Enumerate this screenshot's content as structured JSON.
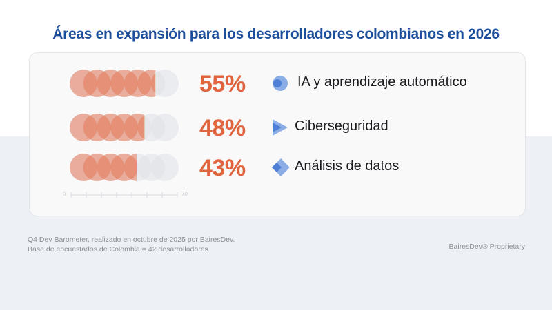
{
  "title": "Áreas en expansión para los desarrolladores colombianos en 2026",
  "chart_data": {
    "type": "bar",
    "title": "Áreas en expansión para los desarrolladores colombianos en 2026",
    "categories": [
      "IA y aprendizaje automático",
      "Ciberseguridad",
      "Análisis de datos"
    ],
    "values": [
      55,
      48,
      43
    ],
    "value_labels": [
      "55%",
      "48%",
      "43%"
    ],
    "xlim": [
      0,
      70
    ],
    "axis_tick_step": 10,
    "axis_labels": {
      "min": "0",
      "max": "70"
    },
    "legend_icons": [
      "circle-icon",
      "triangle-icon",
      "diamond-icon"
    ],
    "colors": {
      "fill": "#e57a5a",
      "empty": "#dfe2e6",
      "value_text": "#e0643e",
      "icon": "#5b86d6"
    }
  },
  "footer": {
    "source_line1": "Q4 Dev Barometer, realizado en octubre de 2025 por BairesDev.",
    "source_line2": "Base de encuestados de Colombia = 42 desarrolladores.",
    "proprietary": "BairesDev® Proprietary"
  }
}
